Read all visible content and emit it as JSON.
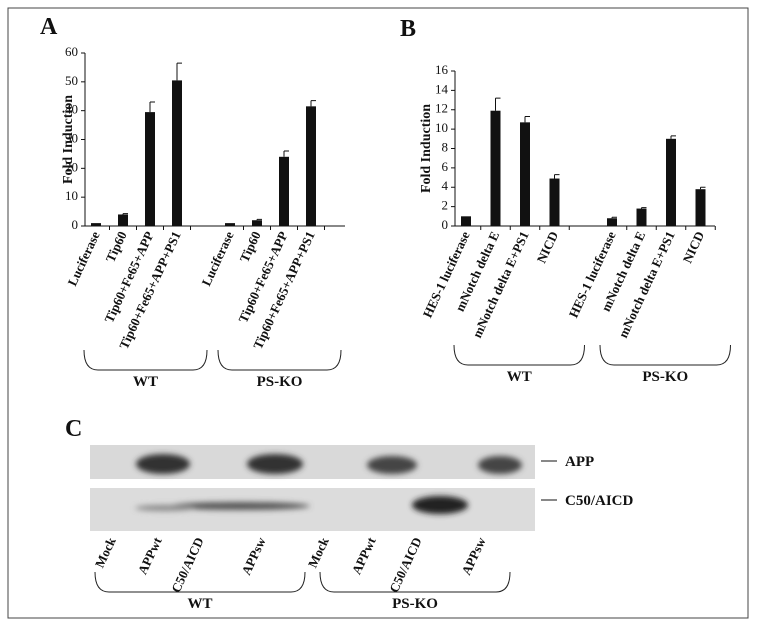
{
  "chart_data": [
    {
      "type": "bar",
      "panel": "A",
      "y_label": "Fold Induction",
      "categories": [
        "Luciferase",
        "Tip60",
        "Tip60+Fe65+APP",
        "Tip60+Fe65+APP+PS1",
        "Luciferase",
        "Tip60",
        "Tip60+Fe65+APP",
        "Tip60+Fe65+APP+PS1"
      ],
      "values": [
        1,
        4,
        39.5,
        50.5,
        1,
        2,
        24,
        41.5
      ],
      "errors": [
        0,
        0.3,
        3.5,
        6,
        0,
        0.3,
        2,
        2
      ],
      "groups": [
        "WT",
        "PS-KO"
      ],
      "color": "#111111",
      "ylim": [
        0,
        60
      ],
      "yticks": [
        0,
        10,
        20,
        30,
        40,
        50,
        60
      ]
    },
    {
      "type": "bar",
      "panel": "B",
      "y_label": "Fold Induction",
      "categories": [
        "HES-1 luciferase",
        "mNotch delta E",
        "mNotch delta E+PS1",
        "NICD",
        "HES-1 luciferase",
        "mNotch delta E",
        "mNotch delta E+PS1",
        "NICD"
      ],
      "values": [
        1,
        11.9,
        10.7,
        4.9,
        0.8,
        1.8,
        9.0,
        3.8
      ],
      "errors": [
        0,
        1.3,
        0.6,
        0.4,
        0.1,
        0.1,
        0.3,
        0.2
      ],
      "groups": [
        "WT",
        "PS-KO"
      ],
      "color": "#111111",
      "ylim": [
        0,
        16
      ],
      "yticks": [
        0,
        2,
        4,
        6,
        8,
        10,
        12,
        14,
        16
      ]
    }
  ],
  "blot": {
    "panel": "C",
    "bands": [
      "APP",
      "C50/AICD"
    ],
    "lanes": [
      "Mock",
      "APPwt",
      "C50/AICD",
      "APPsw",
      "Mock",
      "APPwt",
      "C50/AICD",
      "APPsw"
    ],
    "groups": [
      "WT",
      "PS-KO"
    ]
  }
}
